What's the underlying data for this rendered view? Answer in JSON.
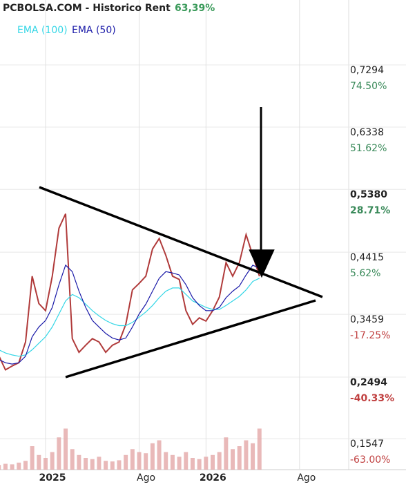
{
  "chart_data": {
    "type": "line",
    "title": "PCBOLSA.COM - Historico  Rent",
    "title_value": "63,39%",
    "categories": [
      null,
      null,
      null,
      null,
      null,
      null,
      null,
      "2025",
      null,
      null,
      null,
      null,
      null,
      null,
      null,
      null,
      null,
      null,
      null,
      null,
      null,
      "Ago",
      null,
      null,
      null,
      null,
      null,
      null,
      null,
      null,
      null,
      "2026",
      null,
      null,
      null,
      null,
      null,
      null,
      null,
      null,
      null,
      null,
      null,
      null,
      null,
      "Ago",
      null,
      null,
      null,
      null,
      null,
      null,
      null
    ],
    "series": [
      {
        "color": "#b03a3a",
        "values": [
          0.291,
          0.269,
          0.275,
          0.28,
          0.312,
          0.413,
          0.371,
          0.36,
          0.413,
          0.487,
          0.509,
          0.317,
          0.296,
          0.307,
          0.317,
          0.312,
          0.296,
          0.307,
          0.312,
          0.339,
          0.392,
          0.402,
          0.413,
          0.455,
          0.471,
          0.445,
          0.413,
          0.408,
          0.36,
          0.339,
          0.349,
          0.344,
          0.36,
          0.381,
          0.434,
          0.413,
          0.434,
          0.477,
          0.445,
          0.413,
          null,
          null,
          null,
          null,
          null,
          null,
          null,
          null,
          null,
          null,
          null,
          null,
          null
        ]
      },
      {
        "name": "EMA (100)",
        "color": "#33d6e6",
        "values": [
          0.3,
          0.295,
          0.292,
          0.29,
          0.292,
          0.3,
          0.31,
          0.32,
          0.335,
          0.355,
          0.375,
          0.385,
          0.38,
          0.37,
          0.36,
          0.352,
          0.345,
          0.34,
          0.337,
          0.337,
          0.342,
          0.35,
          0.358,
          0.368,
          0.38,
          0.39,
          0.395,
          0.395,
          0.385,
          0.375,
          0.37,
          0.365,
          0.362,
          0.362,
          0.368,
          0.375,
          0.382,
          0.392,
          0.405,
          0.41,
          null,
          null,
          null,
          null,
          null,
          null,
          null,
          null,
          null,
          null,
          null,
          null,
          null
        ]
      },
      {
        "name": "EMA (50)",
        "color": "#1a1aa8",
        "values": [
          0.285,
          0.28,
          0.278,
          0.28,
          0.29,
          0.32,
          0.335,
          0.345,
          0.365,
          0.4,
          0.43,
          0.42,
          0.39,
          0.365,
          0.345,
          0.335,
          0.325,
          0.318,
          0.315,
          0.318,
          0.335,
          0.355,
          0.37,
          0.39,
          0.41,
          0.42,
          0.418,
          0.415,
          0.4,
          0.38,
          0.368,
          0.36,
          0.36,
          0.365,
          0.38,
          0.39,
          0.398,
          0.415,
          0.43,
          0.425,
          null,
          null,
          null,
          null,
          null,
          null,
          null,
          null,
          null,
          null,
          null,
          null,
          null
        ]
      }
    ],
    "volume": {
      "color": "#e3a8a8",
      "values": [
        8,
        10,
        9,
        12,
        15,
        40,
        25,
        20,
        30,
        55,
        70,
        35,
        25,
        20,
        18,
        22,
        15,
        14,
        16,
        25,
        35,
        30,
        28,
        45,
        50,
        30,
        25,
        22,
        30,
        20,
        18,
        22,
        25,
        30,
        55,
        35,
        40,
        50,
        45,
        70,
        null,
        null,
        null,
        null,
        null,
        null,
        null,
        null,
        null,
        null,
        null,
        null,
        null
      ],
      "ylim": [
        0,
        100
      ]
    },
    "ylim": [
      0.1156,
      0.8377
    ],
    "yticks": [
      {
        "value": 0.7294,
        "label": "0,7294"
      },
      {
        "value": 0.6338,
        "label": "0,6338"
      },
      {
        "value": 0.538,
        "label": "0,5380"
      },
      {
        "value": 0.4415,
        "label": "0,4415"
      },
      {
        "value": 0.3459,
        "label": "0,3459"
      },
      {
        "value": 0.2494,
        "label": "0,2494"
      },
      {
        "value": 0.1547,
        "label": "0,1547"
      }
    ],
    "ytick_change_labels": [
      {
        "label": "74.50%",
        "color": "#3a8a5a",
        "bold": false
      },
      {
        "label": "51.62%",
        "color": "#3a8a5a",
        "bold": false
      },
      {
        "label": "28.71%",
        "color": "#3a8a5a",
        "bold": true
      },
      {
        "label": "5.62%",
        "color": "#3a8a5a",
        "bold": false
      },
      {
        "label": "-17.25%",
        "color": "#c04040",
        "bold": false
      },
      {
        "label": "-40.33%",
        "color": "#c04040",
        "bold": true
      },
      {
        "label": "-63.00%",
        "color": "#c04040",
        "bold": false
      }
    ],
    "grid": true
  }
}
